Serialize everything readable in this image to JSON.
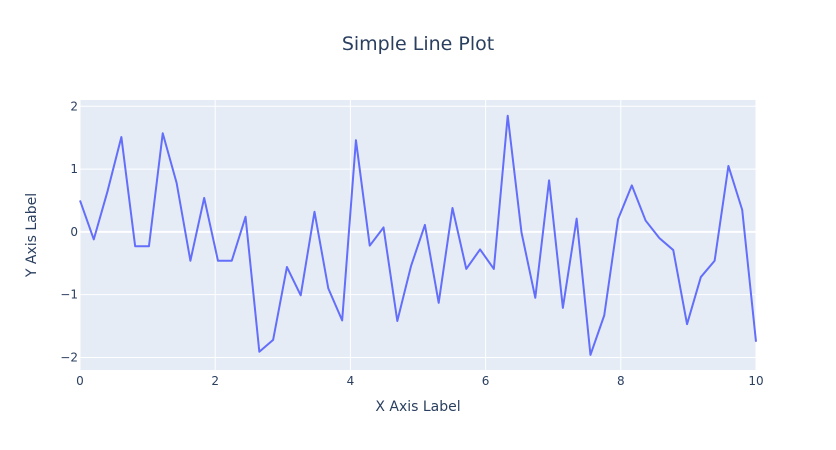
{
  "chart_data": {
    "type": "line",
    "title": "Simple Line Plot",
    "xlabel": "X Axis Label",
    "ylabel": "Y Axis Label",
    "xlim": [
      0,
      10
    ],
    "ylim": [
      -2.2,
      2.1
    ],
    "x_ticks": [
      0,
      2,
      4,
      6,
      8,
      10
    ],
    "x_tick_labels": [
      "0",
      "2",
      "4",
      "6",
      "8",
      "10"
    ],
    "y_ticks": [
      -2,
      -1,
      0,
      1,
      2
    ],
    "y_tick_labels": [
      "−2",
      "−1",
      "0",
      "1",
      "2"
    ],
    "grid": true,
    "legend": "none",
    "colors": {
      "line": "#636efa",
      "plot_background": "#e5ecf6",
      "grid": "#ffffff",
      "text": "#2a3f5f"
    },
    "series": [
      {
        "x": [
          0,
          0.204,
          0.408,
          0.612,
          0.816,
          1.02,
          1.224,
          1.429,
          1.633,
          1.837,
          2.041,
          2.245,
          2.449,
          2.653,
          2.857,
          3.061,
          3.265,
          3.469,
          3.673,
          3.878,
          4.082,
          4.286,
          4.49,
          4.694,
          4.898,
          5.102,
          5.306,
          5.51,
          5.714,
          5.918,
          6.122,
          6.327,
          6.531,
          6.735,
          6.939,
          7.143,
          7.347,
          7.551,
          7.755,
          7.959,
          8.163,
          8.367,
          8.571,
          8.776,
          8.98,
          9.184,
          9.388,
          9.592,
          9.796,
          10
        ],
        "values": [
          0.5,
          -0.12,
          0.65,
          1.51,
          -0.23,
          -0.23,
          1.57,
          0.78,
          -0.46,
          0.54,
          -0.46,
          -0.46,
          0.24,
          -1.91,
          -1.72,
          -0.56,
          -1.01,
          0.32,
          -0.9,
          -1.41,
          1.46,
          -0.22,
          0.07,
          -1.42,
          -0.54,
          0.11,
          -1.13,
          0.38,
          -0.59,
          -0.28,
          -0.59,
          1.85,
          -0.01,
          -1.05,
          0.82,
          -1.21,
          0.21,
          -1.96,
          -1.33,
          0.2,
          0.74,
          0.18,
          -0.1,
          -0.29,
          -1.47,
          -0.72,
          -0.46,
          1.05,
          0.35,
          -1.75
        ]
      }
    ]
  }
}
